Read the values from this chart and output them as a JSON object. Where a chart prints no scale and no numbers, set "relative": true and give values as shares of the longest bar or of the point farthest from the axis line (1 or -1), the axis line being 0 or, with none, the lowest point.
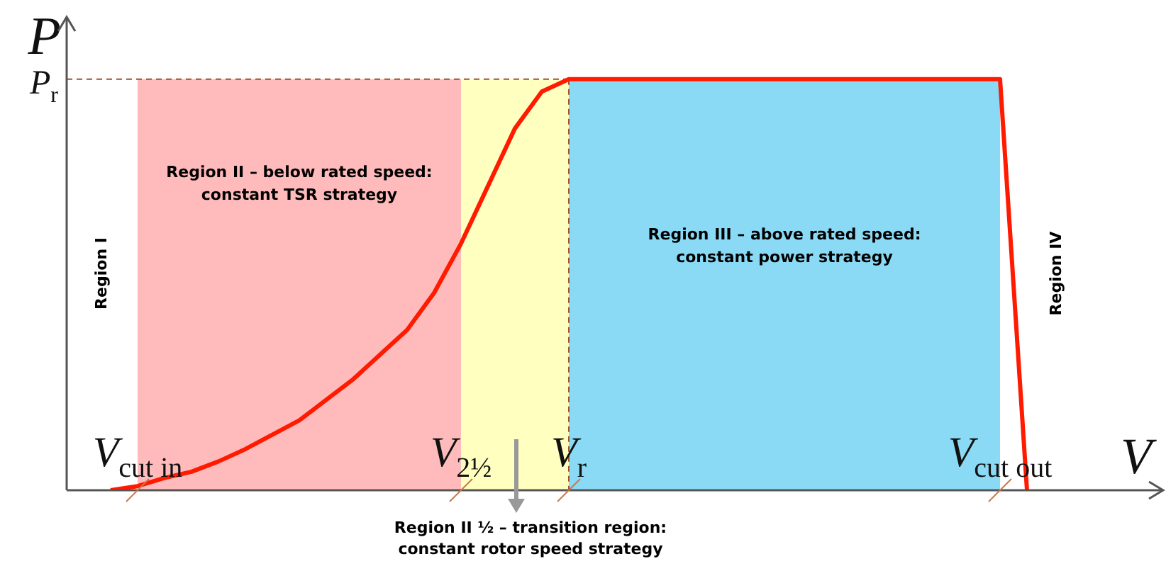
{
  "chart_data": {
    "type": "line",
    "relative": true,
    "xlabel": "V",
    "ylabel": "P",
    "legend": false,
    "categories": [
      null,
      null,
      "V$_{cut in}$",
      null,
      null,
      null,
      null,
      null,
      null,
      null,
      null,
      null,
      null,
      null,
      "V$_{2½}$",
      null,
      null,
      null,
      "V$_{r}$",
      null,
      null,
      null,
      null,
      null,
      null,
      null,
      null,
      null,
      null,
      null,
      null,
      null,
      null,
      null,
      "V$_{cut out}$",
      null,
      null,
      null,
      null,
      null,
      null
    ],
    "values": [
      null,
      0,
      0.01,
      0.03,
      0.045,
      0.07,
      0.1,
      0.135,
      0.17,
      0.22,
      0.27,
      0.33,
      0.39,
      0.48,
      0.6,
      0.74,
      0.88,
      0.97,
      1,
      1,
      1,
      1,
      1,
      1,
      1,
      1,
      1,
      1,
      1,
      1,
      1,
      1,
      1,
      1,
      1,
      0,
      null,
      null,
      null,
      null,
      null
    ],
    "color": "#ff1a00",
    "bands": [
      {
        "axis": "x",
        "from": "V$_{cut in}$",
        "to": "V$_{2½}$",
        "label": "Region II – below rated speed: constant TSR strategy",
        "color": "#ffbbbb"
      },
      {
        "axis": "x",
        "from": "V$_{2½}$",
        "to": "V$_{r}$",
        "color": "#ffffc0"
      },
      {
        "axis": "x",
        "from": "V$_{r}$",
        "to": "V$_{cut out}$",
        "label": "Region III – above rated speed: constant power strategy",
        "color": "#8adaf5"
      }
    ],
    "ref_lines": [
      {
        "axis": "y",
        "value": 1,
        "label": "P$_{r}$",
        "color": "#a0522d",
        "line_style": "dashed"
      },
      {
        "axis": "x",
        "value": "V$_{r}$",
        "color": "#a0522d",
        "line_style": "dashed"
      }
    ],
    "annotations": [
      "Region I",
      "Region IV",
      "Region II ½ – transition region: constant rotor speed strategy"
    ]
  }
}
